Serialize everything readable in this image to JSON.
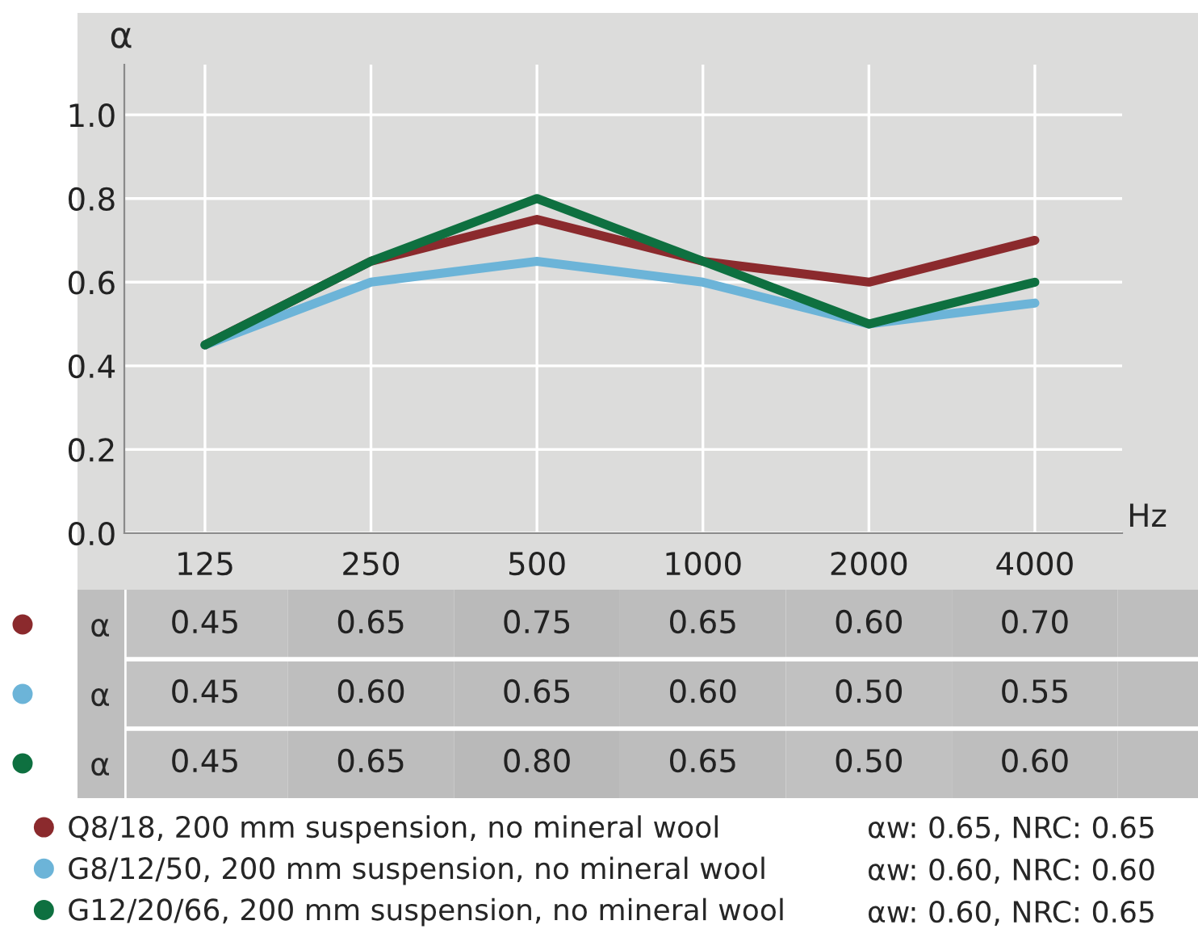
{
  "chart_data": [
    {
      "type": "line",
      "ylabel": "α",
      "xlabel": "Hz",
      "categories": [
        "125",
        "250",
        "500",
        "1000",
        "2000",
        "4000"
      ],
      "series": [
        {
          "name": "Q8/18, 200 mm suspension, no mineral wool",
          "color": "#8b2a2d",
          "values": [
            0.45,
            0.65,
            0.75,
            0.65,
            0.6,
            0.7
          ]
        },
        {
          "name": "G8/12/50, 200 mm suspension, no mineral wool",
          "color": "#6cb4d8",
          "values": [
            0.45,
            0.6,
            0.65,
            0.6,
            0.5,
            0.55
          ]
        },
        {
          "name": "G12/20/66, 200 mm suspension, no mineral wool",
          "color": "#0e7040",
          "values": [
            0.45,
            0.65,
            0.8,
            0.65,
            0.5,
            0.6
          ]
        }
      ],
      "annotations": [
        "αw: 0.65, NRC: 0.65",
        "αw: 0.60, NRC: 0.60",
        "αw: 0.60, NRC: 0.65"
      ],
      "ylim": [
        0,
        1.12
      ],
      "yticks": [
        {
          "value": 0,
          "label": "0.0"
        },
        {
          "value": 0.2,
          "label": "0.2"
        },
        {
          "value": 0.4,
          "label": "0.4"
        },
        {
          "value": 0.6,
          "label": "0.6"
        },
        {
          "value": 0.8,
          "label": "0.8"
        },
        {
          "value": 1.0,
          "label": "1.0"
        }
      ],
      "grid": true,
      "legend": "bottom",
      "marker": "none",
      "line_style": "solid"
    },
    {
      "type": "heatmap",
      "categories": [
        "125",
        "250",
        "500",
        "1000",
        "2000",
        "4000"
      ],
      "y_categories": [
        "α",
        "α",
        "α"
      ],
      "cells": [
        [
          0.45,
          0.65,
          0.75,
          0.65,
          0.6,
          0.7
        ],
        [
          0.45,
          0.6,
          0.65,
          0.6,
          0.5,
          0.55
        ],
        [
          0.45,
          0.65,
          0.8,
          0.65,
          0.5,
          0.6
        ]
      ],
      "cell_labels": [
        [
          "0.45",
          "0.65",
          "0.75",
          "0.65",
          "0.60",
          "0.70"
        ],
        [
          "0.45",
          "0.60",
          "0.65",
          "0.60",
          "0.50",
          "0.55"
        ],
        [
          "0.45",
          "0.65",
          "0.80",
          "0.65",
          "0.50",
          "0.60"
        ]
      ],
      "tick_labels": "y"
    }
  ]
}
